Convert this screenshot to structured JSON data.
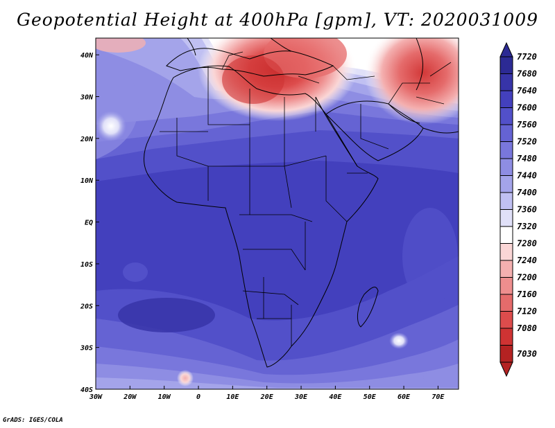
{
  "title": "Geopotential Height at 400hPa [gpm], VT: 2020031009",
  "credit": "GrADS: IGES/COLA",
  "map": {
    "region": "Africa, Europe and Middle East",
    "lon_ticks": [
      "30W",
      "20W",
      "10W",
      "0",
      "10E",
      "20E",
      "30E",
      "40E",
      "50E",
      "60E",
      "70E"
    ],
    "lat_ticks": [
      "40N",
      "30N",
      "20N",
      "10N",
      "EQ",
      "10S",
      "20S",
      "30S",
      "40S"
    ],
    "lon_range": [
      -30,
      76
    ],
    "lat_range": [
      -40,
      44
    ]
  },
  "colorbar": {
    "levels": [
      "7720",
      "7680",
      "7640",
      "7600",
      "7560",
      "7520",
      "7480",
      "7440",
      "7400",
      "7360",
      "7320",
      "7280",
      "7240",
      "7200",
      "7160",
      "7120",
      "7080",
      "7030"
    ],
    "colors": [
      "#2c2a94",
      "#3734a8",
      "#4340bd",
      "#5250c9",
      "#6563d3",
      "#7977dc",
      "#8e8de3",
      "#a4a4ea",
      "#c0c0f2",
      "#e0e0f8",
      "#ffffff",
      "#fad6d6",
      "#f4b0b0",
      "#ee8e8e",
      "#e56b6b",
      "#dd4c4c",
      "#cf3333",
      "#b42222"
    ]
  }
}
